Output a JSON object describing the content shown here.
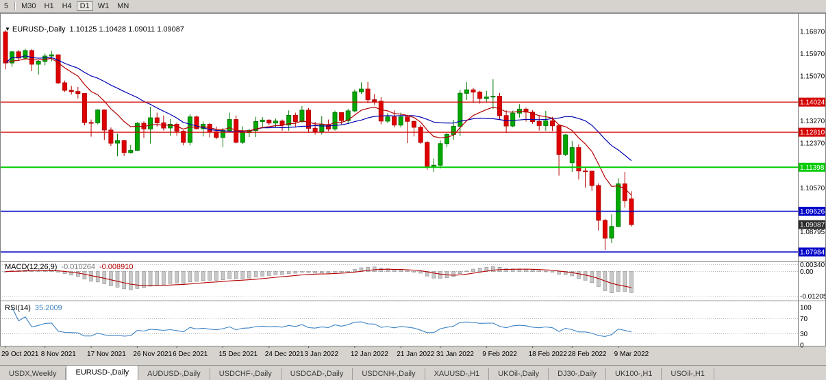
{
  "toolbar": {
    "timeframes": [
      "5",
      "M30",
      "H1",
      "H4",
      "D1",
      "W1",
      "MN"
    ]
  },
  "chart": {
    "symbol": "EURUSD-,Daily",
    "ohlc": "1.10125 1.10428 1.09011 1.09087",
    "macd_title": "MACD(12,26,9)",
    "macd_value_main": "-0.010264",
    "macd_value_signal": "-0.008910",
    "rsi_title": "RSI(14)",
    "rsi_value": "35.2009"
  },
  "colors": {
    "bull": "#007a00",
    "bull_fill": "#00a800",
    "bear": "#b40000",
    "bear_fill": "#e00000",
    "ma_blue": "#0000b4",
    "ma_red": "#b40000",
    "macd_hist": "#c8c8c8",
    "macd_hist_stroke": "#8f8f8f",
    "macd_signal": "#b40000",
    "rsi": "#3b82c4",
    "hline_red": "#d40000",
    "hline_green": "#00cc00",
    "hline_blue": "#0000c8",
    "bid_label": "#2b2b2b",
    "grid_dot": "#9a9a9a"
  },
  "chart_data": {
    "type": "candlestick",
    "symbol": "EURUSD",
    "timeframe": "Daily",
    "candles": [
      [
        1.1685,
        1.1692,
        1.1535,
        1.156
      ],
      [
        1.156,
        1.1609,
        1.1545,
        1.1605
      ],
      [
        1.1605,
        1.1612,
        1.1571,
        1.158
      ],
      [
        1.158,
        1.1618,
        1.1572,
        1.161
      ],
      [
        1.161,
        1.1616,
        1.1527,
        1.1555
      ],
      [
        1.1555,
        1.1573,
        1.1513,
        1.1567
      ],
      [
        1.1567,
        1.1598,
        1.155,
        1.1588
      ],
      [
        1.1588,
        1.1609,
        1.1567,
        1.1593
      ],
      [
        1.1593,
        1.1594,
        1.1475,
        1.148
      ],
      [
        1.148,
        1.1489,
        1.1443,
        1.145
      ],
      [
        1.145,
        1.1468,
        1.1433,
        1.1445
      ],
      [
        1.1445,
        1.1464,
        1.1417,
        1.1437
      ],
      [
        1.1437,
        1.1438,
        1.1309,
        1.132
      ],
      [
        1.132,
        1.1332,
        1.1263,
        1.1319
      ],
      [
        1.1319,
        1.1374,
        1.1313,
        1.1371
      ],
      [
        1.1371,
        1.1373,
        1.125,
        1.129
      ],
      [
        1.129,
        1.13,
        1.1226,
        1.1237
      ],
      [
        1.1237,
        1.1275,
        1.1184,
        1.1247
      ],
      [
        1.1247,
        1.125,
        1.1185,
        1.1199
      ],
      [
        1.1199,
        1.123,
        1.1195,
        1.1208
      ],
      [
        1.1208,
        1.1322,
        1.1205,
        1.1317
      ],
      [
        1.1317,
        1.1325,
        1.1258,
        1.1294
      ],
      [
        1.1294,
        1.1383,
        1.1235,
        1.1339
      ],
      [
        1.1339,
        1.136,
        1.1304,
        1.1319
      ],
      [
        1.1319,
        1.1348,
        1.1288,
        1.1298
      ],
      [
        1.1298,
        1.1334,
        1.1266,
        1.1313
      ],
      [
        1.1313,
        1.132,
        1.1267,
        1.1285
      ],
      [
        1.1285,
        1.129,
        1.1228,
        1.124
      ],
      [
        1.124,
        1.1354,
        1.1228,
        1.1343
      ],
      [
        1.1343,
        1.1348,
        1.1293,
        1.1295
      ],
      [
        1.1295,
        1.1324,
        1.1264,
        1.1313
      ],
      [
        1.1313,
        1.1319,
        1.126,
        1.1283
      ],
      [
        1.1283,
        1.1304,
        1.1253,
        1.126
      ],
      [
        1.126,
        1.1298,
        1.1221,
        1.1288
      ],
      [
        1.1288,
        1.136,
        1.128,
        1.1332
      ],
      [
        1.1332,
        1.1349,
        1.1236,
        1.124
      ],
      [
        1.124,
        1.1305,
        1.1234,
        1.128
      ],
      [
        1.128,
        1.1295,
        1.1262,
        1.1288
      ],
      [
        1.1288,
        1.1343,
        1.1262,
        1.1324
      ],
      [
        1.1324,
        1.1342,
        1.1303,
        1.133
      ],
      [
        1.133,
        1.1333,
        1.1308,
        1.1318
      ],
      [
        1.1318,
        1.1336,
        1.1301,
        1.1326
      ],
      [
        1.1326,
        1.1332,
        1.1287,
        1.131
      ],
      [
        1.131,
        1.1369,
        1.1287,
        1.1349
      ],
      [
        1.1349,
        1.136,
        1.13,
        1.1324
      ],
      [
        1.1324,
        1.1386,
        1.132,
        1.137
      ],
      [
        1.137,
        1.1379,
        1.1279,
        1.1297
      ],
      [
        1.1297,
        1.1323,
        1.1272,
        1.1284
      ],
      [
        1.1284,
        1.1346,
        1.1272,
        1.1312
      ],
      [
        1.1312,
        1.1332,
        1.1285,
        1.1294
      ],
      [
        1.1294,
        1.1368,
        1.1288,
        1.136
      ],
      [
        1.136,
        1.1362,
        1.1313,
        1.1328
      ],
      [
        1.1328,
        1.1375,
        1.1315,
        1.1367
      ],
      [
        1.1367,
        1.1453,
        1.1361,
        1.1444
      ],
      [
        1.1444,
        1.1482,
        1.1435,
        1.1455
      ],
      [
        1.1455,
        1.1483,
        1.1398,
        1.1412
      ],
      [
        1.1412,
        1.1435,
        1.1392,
        1.1406
      ],
      [
        1.1406,
        1.1422,
        1.1313,
        1.1326
      ],
      [
        1.1326,
        1.1358,
        1.1318,
        1.1343
      ],
      [
        1.1343,
        1.1369,
        1.1301,
        1.131
      ],
      [
        1.131,
        1.136,
        1.13,
        1.1343
      ],
      [
        1.1343,
        1.1349,
        1.1237,
        1.1325
      ],
      [
        1.1325,
        1.1327,
        1.1264,
        1.1301
      ],
      [
        1.1301,
        1.131,
        1.1234,
        1.124
      ],
      [
        1.124,
        1.1245,
        1.113,
        1.1144
      ],
      [
        1.1144,
        1.1175,
        1.1121,
        1.1148
      ],
      [
        1.1148,
        1.1248,
        1.1135,
        1.1235
      ],
      [
        1.1235,
        1.1279,
        1.122,
        1.1272
      ],
      [
        1.1272,
        1.1331,
        1.1251,
        1.1305
      ],
      [
        1.1305,
        1.1452,
        1.1266,
        1.1438
      ],
      [
        1.1438,
        1.1483,
        1.1411,
        1.1452
      ],
      [
        1.1452,
        1.146,
        1.14,
        1.1443
      ],
      [
        1.1443,
        1.1448,
        1.1396,
        1.1417
      ],
      [
        1.1417,
        1.1448,
        1.1403,
        1.1423
      ],
      [
        1.1423,
        1.1495,
        1.1375,
        1.1426
      ],
      [
        1.1426,
        1.1439,
        1.133,
        1.1348
      ],
      [
        1.1348,
        1.1369,
        1.1278,
        1.1306
      ],
      [
        1.1306,
        1.1368,
        1.1301,
        1.1358
      ],
      [
        1.1358,
        1.1394,
        1.134,
        1.1374
      ],
      [
        1.1374,
        1.138,
        1.1324,
        1.1362
      ],
      [
        1.1362,
        1.137,
        1.1315,
        1.1324
      ],
      [
        1.1324,
        1.1346,
        1.1288,
        1.1308
      ],
      [
        1.1308,
        1.1367,
        1.1287,
        1.1327
      ],
      [
        1.1327,
        1.1343,
        1.1286,
        1.1307
      ],
      [
        1.1307,
        1.1313,
        1.1106,
        1.1192
      ],
      [
        1.1192,
        1.1274,
        1.1185,
        1.127
      ],
      [
        1.1158,
        1.1246,
        1.1121,
        1.1219
      ],
      [
        1.1219,
        1.1232,
        1.109,
        1.1125
      ],
      [
        1.1125,
        1.114,
        1.1058,
        1.1124
      ],
      [
        1.1124,
        1.1125,
        1.1045,
        1.1066
      ],
      [
        1.1066,
        1.1075,
        1.0885,
        1.0926
      ],
      [
        1.0926,
        1.0932,
        1.0806,
        1.0854
      ],
      [
        1.0854,
        1.095,
        1.0834,
        1.0901
      ],
      [
        1.0901,
        1.1095,
        1.09,
        1.1073
      ],
      [
        1.1073,
        1.1121,
        1.0977,
        1.1005
      ],
      [
        1.10125,
        1.10428,
        1.09011,
        1.09087
      ]
    ],
    "x_labels": [
      {
        "label": "29 Oct 2021",
        "i": 0
      },
      {
        "label": "8 Nov 2021",
        "i": 6
      },
      {
        "label": "17 Nov 2021",
        "i": 13
      },
      {
        "label": "26 Nov 2021",
        "i": 20
      },
      {
        "label": "6 Dec 2021",
        "i": 26
      },
      {
        "label": "15 Dec 2021",
        "i": 33
      },
      {
        "label": "24 Dec 2021",
        "i": 40
      },
      {
        "label": "3 Jan 2022",
        "i": 46
      },
      {
        "label": "12 Jan 2022",
        "i": 53
      },
      {
        "label": "21 Jan 2022",
        "i": 60
      },
      {
        "label": "31 Jan 2022",
        "i": 66
      },
      {
        "label": "9 Feb 2022",
        "i": 73
      },
      {
        "label": "18 Feb 2022",
        "i": 80
      },
      {
        "label": "28 Feb 2022",
        "i": 86
      },
      {
        "label": "9 Mar 2022",
        "i": 93
      }
    ],
    "y_grid_labels": [
      {
        "text": "1.16870",
        "p": 1.1687
      },
      {
        "text": "1.15970",
        "p": 1.1597
      },
      {
        "text": "1.15070",
        "p": 1.1507
      },
      {
        "text": "1.13270",
        "p": 1.1327
      },
      {
        "text": "1.12370",
        "p": 1.1237
      },
      {
        "text": "1.10570",
        "p": 1.1057
      },
      {
        "text": "1.08795",
        "p": 1.08795
      }
    ],
    "hlines": [
      {
        "p": 1.14024,
        "text": "1.14024",
        "color": "hline_red",
        "w": 1.2
      },
      {
        "p": 1.1281,
        "text": "1.12810",
        "color": "hline_red",
        "w": 1.2
      },
      {
        "p": 1.11398,
        "text": "1.11398",
        "color": "hline_green",
        "w": 2
      },
      {
        "p": 1.09626,
        "text": "1.09626",
        "color": "hline_blue",
        "w": 1.6
      },
      {
        "p": 1.07984,
        "text": "1.07984",
        "color": "hline_blue",
        "w": 1.6
      }
    ],
    "bid": {
      "p": 1.09087,
      "text": "1.09087"
    },
    "macd": {
      "params": [
        12,
        26,
        9
      ],
      "main": -0.010264,
      "signal": -0.00891,
      "axis": [
        {
          "text": "0.00340",
          "v": 0.0034
        },
        {
          "text": "0.00",
          "v": 0
        },
        {
          "text": "-0.01205",
          "v": -0.01205
        }
      ]
    },
    "rsi": {
      "period": 14,
      "value": 35.2009,
      "axis": [
        {
          "text": "100",
          "v": 100
        },
        {
          "text": "70",
          "v": 70
        },
        {
          "text": "30",
          "v": 30
        },
        {
          "text": "0",
          "v": 0
        }
      ],
      "levels": [
        70,
        30
      ]
    }
  },
  "tabs": [
    {
      "label": "USDX,Weekly",
      "active": false
    },
    {
      "label": "EURUSD-,Daily",
      "active": true
    },
    {
      "label": "AUDUSD-,Daily",
      "active": false
    },
    {
      "label": "USDCHF-,Daily",
      "active": false
    },
    {
      "label": "USDCAD-,Daily",
      "active": false
    },
    {
      "label": "USDCNH-,Daily",
      "active": false
    },
    {
      "label": "XAUUSD-,H1",
      "active": false
    },
    {
      "label": "UKOil-,Daily",
      "active": false
    },
    {
      "label": "DJ30-,Daily",
      "active": false
    },
    {
      "label": "UK100-,H1",
      "active": false
    },
    {
      "label": "USOil-,H1",
      "active": false
    }
  ]
}
